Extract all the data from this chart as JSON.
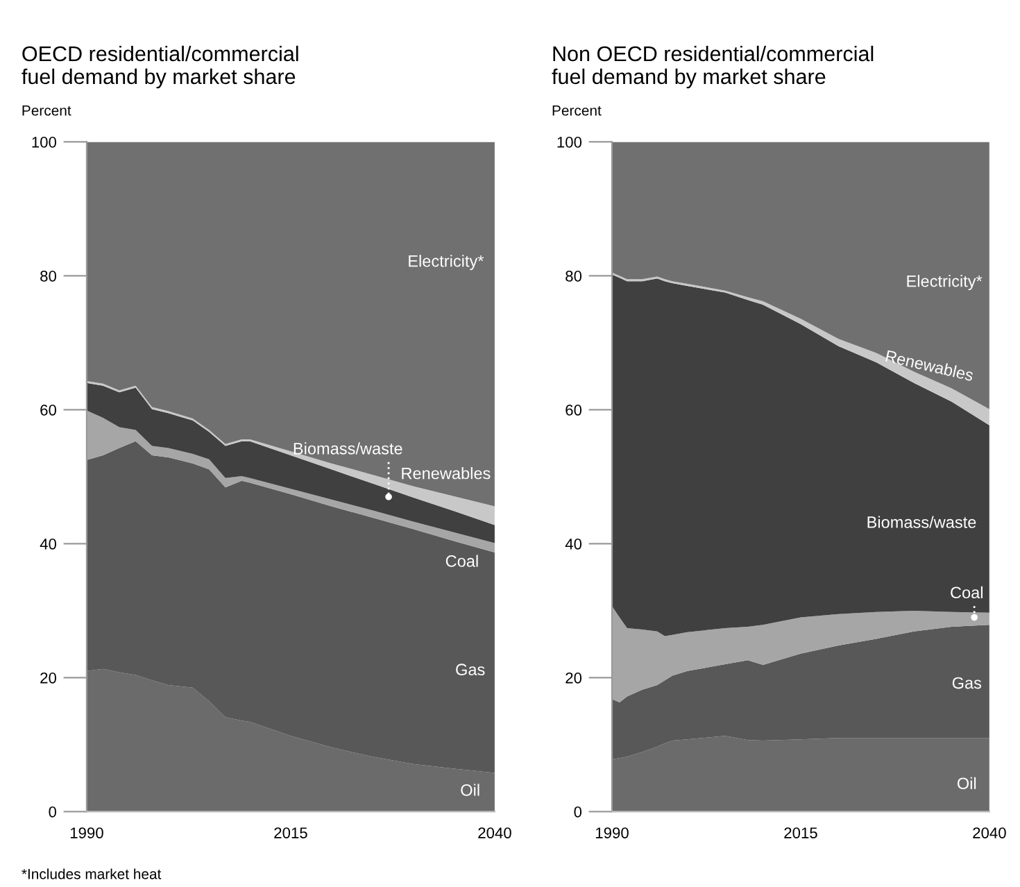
{
  "chart_data": [
    {
      "type": "area",
      "stacked": true,
      "title": "OECD residential/commercial\nfuel demand by market share",
      "ylabel": "Percent",
      "x": [
        1990,
        1992,
        1994,
        1996,
        1998,
        2000,
        2003,
        2005,
        2007,
        2009,
        2010,
        2015,
        2020,
        2025,
        2030,
        2035,
        2040
      ],
      "xlim": [
        1990,
        2040
      ],
      "xticks": [
        1990,
        2015,
        2040
      ],
      "ylim": [
        0,
        100
      ],
      "yticks": [
        0,
        20,
        40,
        60,
        80,
        100
      ],
      "grid": false,
      "legend": false,
      "series": [
        {
          "name": "Oil",
          "color": "#6b6b6b",
          "values": [
            21,
            21.3,
            20.8,
            20.4,
            19.6,
            18.9,
            18.5,
            16.5,
            14.1,
            13.6,
            13.4,
            11.3,
            9.6,
            8.2,
            7.1,
            6.4,
            5.8
          ]
        },
        {
          "name": "Gas",
          "color": "#585858",
          "values": [
            31.5,
            31.9,
            33.5,
            34.9,
            33.6,
            34.0,
            33.5,
            34.6,
            34.3,
            35.8,
            35.7,
            36.1,
            36.0,
            35.7,
            35.1,
            34.0,
            32.9
          ]
        },
        {
          "name": "Coal",
          "color": "#a6a6a6",
          "values": [
            7.4,
            5.6,
            3.1,
            1.7,
            1.4,
            1.4,
            1.4,
            1.5,
            1.4,
            0.7,
            0.7,
            0.8,
            1.0,
            1.1,
            1.1,
            1.3,
            1.4
          ]
        },
        {
          "name": "Biomass/waste",
          "color": "#404040",
          "values": [
            4.1,
            4.8,
            5.2,
            6.3,
            5.5,
            5.2,
            5.0,
            4.1,
            4.8,
            5.2,
            5.5,
            5.0,
            4.5,
            4.0,
            3.6,
            3.2,
            2.7
          ]
        },
        {
          "name": "Renewables",
          "color": "#c8c8c8",
          "values": [
            0.3,
            0.3,
            0.3,
            0.3,
            0.3,
            0.3,
            0.3,
            0.3,
            0.3,
            0.3,
            0.3,
            0.6,
            0.9,
            1.3,
            1.7,
            2.2,
            2.8
          ]
        },
        {
          "name": "Electricity*",
          "color": "#707070",
          "values": [
            35.7,
            36.1,
            37.1,
            36.4,
            39.6,
            40.2,
            41.3,
            43.0,
            45.1,
            44.4,
            44.4,
            46.2,
            48.0,
            49.7,
            51.4,
            52.9,
            54.4
          ]
        }
      ],
      "annotations": [
        "*Includes market heat"
      ]
    },
    {
      "type": "area",
      "stacked": true,
      "title": "Non OECD residential/commercial\nfuel demand by market share",
      "ylabel": "Percent",
      "x": [
        1990,
        1991,
        1992,
        1994,
        1996,
        1997,
        1998,
        2000,
        2005,
        2008,
        2010,
        2015,
        2020,
        2025,
        2030,
        2035,
        2040
      ],
      "xlim": [
        1990,
        2040
      ],
      "xticks": [
        1990,
        2015,
        2040
      ],
      "ylim": [
        0,
        100
      ],
      "yticks": [
        0,
        20,
        40,
        60,
        80,
        100
      ],
      "grid": false,
      "legend": false,
      "series": [
        {
          "name": "Oil",
          "color": "#6b6b6b",
          "values": [
            7.8,
            8.0,
            8.2,
            8.9,
            9.7,
            10.2,
            10.6,
            10.8,
            11.3,
            10.7,
            10.6,
            10.8,
            11.0,
            11.0,
            11.0,
            11.0,
            11.0
          ]
        },
        {
          "name": "Gas",
          "color": "#585858",
          "values": [
            9.0,
            8.3,
            9.0,
            9.3,
            9.2,
            9.4,
            9.7,
            10.2,
            10.7,
            11.9,
            11.3,
            12.8,
            13.8,
            14.8,
            15.9,
            16.6,
            16.9
          ]
        },
        {
          "name": "Coal",
          "color": "#a6a6a6",
          "values": [
            13.9,
            12.7,
            10.2,
            9.0,
            8.0,
            6.6,
            6.1,
            5.8,
            5.4,
            5.0,
            6.0,
            5.4,
            4.7,
            4.0,
            3.1,
            2.2,
            1.8
          ]
        },
        {
          "name": "Biomass/waste",
          "color": "#404040",
          "values": [
            49.5,
            50.7,
            51.8,
            52.0,
            52.7,
            53.0,
            52.5,
            51.7,
            50.1,
            48.8,
            47.8,
            43.8,
            40.0,
            37.3,
            34.0,
            31.4,
            28.0
          ]
        },
        {
          "name": "Renewables",
          "color": "#c8c8c8",
          "values": [
            0.3,
            0.3,
            0.3,
            0.3,
            0.3,
            0.3,
            0.3,
            0.3,
            0.3,
            0.4,
            0.5,
            0.8,
            1.1,
            1.4,
            1.7,
            2.0,
            2.4
          ]
        },
        {
          "name": "Electricity*",
          "color": "#707070",
          "values": [
            19.5,
            20.0,
            20.5,
            20.5,
            20.1,
            20.5,
            20.8,
            21.2,
            22.2,
            23.2,
            23.8,
            26.4,
            29.4,
            31.5,
            34.3,
            36.8,
            39.9
          ]
        }
      ]
    }
  ]
}
